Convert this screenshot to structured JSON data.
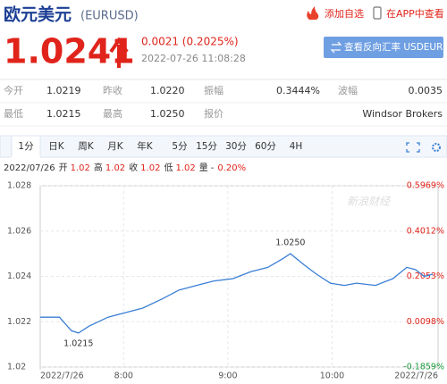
{
  "header": {
    "title": "欧元美元",
    "code": "(EURUSD)",
    "actions": [
      "添加自选",
      "在APP中查看"
    ]
  },
  "quote": {
    "price": "1.0241",
    "change": "0.0021 (0.2025%)",
    "time": "2022-07-26 11:08:28",
    "button": "查看反向汇率 USDEUR"
  },
  "stats": [
    [
      {
        "label": "今开",
        "value": "1.0219"
      },
      {
        "label": "昨收",
        "value": "1.0220"
      },
      {
        "label": "振幅",
        "value": "0.3444%"
      },
      {
        "label": "波幅",
        "value": "0.0035"
      }
    ],
    [
      {
        "label": "最低",
        "value": "1.0215"
      },
      {
        "label": "最高",
        "value": "1.0250"
      },
      {
        "label": "报价",
        "value": "Windsor Brokers"
      }
    ]
  ],
  "tabs": [
    "1分",
    "日K",
    "周K",
    "月K",
    "年K",
    "5分",
    "15分",
    "30分",
    "60分",
    "4H"
  ],
  "info": {
    "date": "2022/07/26",
    "items": [
      {
        "label": "开",
        "value": "1.02"
      },
      {
        "label": "高",
        "value": "1.02"
      },
      {
        "label": "收",
        "value": "1.02"
      },
      {
        "label": "低",
        "value": "1.02"
      },
      {
        "label": "量",
        "value": "-"
      }
    ],
    "change": "0.20%"
  },
  "chart_data": {
    "type": "line",
    "watermark": "新浪财经",
    "x": [
      "7:12",
      "7:23",
      "7:30",
      "7:34",
      "7:40",
      "7:51",
      "8:01",
      "8:11",
      "8:22",
      "8:32",
      "8:42",
      "8:52",
      "9:03",
      "9:13",
      "9:23",
      "9:32",
      "9:36",
      "9:44",
      "9:51",
      "9:59",
      "10:07",
      "10:14",
      "10:25",
      "10:35",
      "10:43",
      "10:48",
      "10:53",
      "10:58"
    ],
    "series": [
      {
        "color": "#3a7fd5",
        "values": [
          1.0222,
          1.0222,
          1.0216,
          1.0215,
          1.0218,
          1.0222,
          1.0224,
          1.0226,
          1.023,
          1.0234,
          1.0236,
          1.0238,
          1.0239,
          1.0242,
          1.0244,
          1.0248,
          1.025,
          1.0245,
          1.0241,
          1.0237,
          1.0236,
          1.0237,
          1.0236,
          1.0239,
          1.0244,
          1.0243,
          1.024,
          1.0241
        ]
      }
    ],
    "xlim": [
      "7:12",
      "11:01"
    ],
    "xticks": [
      {
        "value": "7:12",
        "label": "2022/7/26"
      },
      "8:00",
      "9:00",
      "10:00",
      {
        "value": "11:01",
        "label": "2022/7/26"
      }
    ],
    "ylim": [
      1.02,
      1.028
    ],
    "yticks": [
      {
        "value": 1.028,
        "label": "1.028"
      },
      {
        "value": 1.026,
        "label": "1.026"
      },
      {
        "value": 1.024,
        "label": "1.024"
      },
      {
        "value": 1.022,
        "label": "1.022"
      },
      {
        "value": 1.02,
        "label": "1.02"
      }
    ],
    "y2lim": [
      -0.1859,
      0.5969
    ],
    "y2ticks": [
      {
        "value": 0.5969,
        "label": "0.5969%"
      },
      {
        "value": 0.4012,
        "label": "0.4012%"
      },
      {
        "value": 0.2053,
        "label": "0.2053%"
      },
      {
        "value": 0.0098,
        "label": "0.0098%"
      },
      {
        "value": -0.1859,
        "label": "-0.1859%"
      }
    ],
    "annotations": [
      {
        "text": "1.0250",
        "x": "9:36",
        "y": 1.025
      },
      {
        "text": "1.0215",
        "x": "7:34",
        "y": 1.0215
      }
    ],
    "grid": true
  }
}
